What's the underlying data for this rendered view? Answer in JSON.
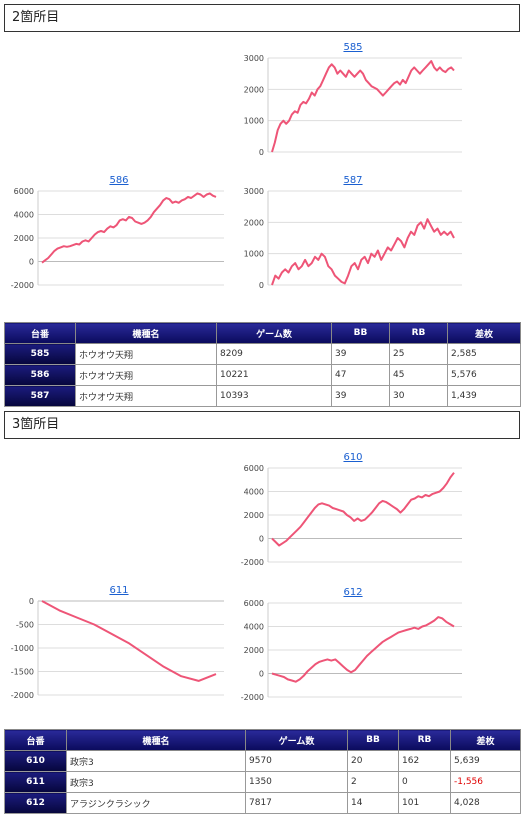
{
  "sections": [
    {
      "title": "2箇所目",
      "table": {
        "headers": [
          "台番",
          "機種名",
          "ゲーム数",
          "BB",
          "RB",
          "差枚"
        ],
        "rows": [
          {
            "id": "585",
            "machine": "ホウオウ天翔",
            "games": "8209",
            "bb": "39",
            "rb": "25",
            "diff": "2,585",
            "negative": false
          },
          {
            "id": "586",
            "machine": "ホウオウ天翔",
            "games": "10221",
            "bb": "47",
            "rb": "45",
            "diff": "5,576",
            "negative": false
          },
          {
            "id": "587",
            "machine": "ホウオウ天翔",
            "games": "10393",
            "bb": "39",
            "rb": "30",
            "diff": "1,439",
            "negative": false
          }
        ]
      }
    },
    {
      "title": "3箇所目",
      "table": {
        "headers": [
          "台番",
          "機種名",
          "ゲーム数",
          "BB",
          "RB",
          "差枚"
        ],
        "rows": [
          {
            "id": "610",
            "machine": "政宗3",
            "games": "9570",
            "bb": "20",
            "rb": "162",
            "diff": "5,639",
            "negative": false
          },
          {
            "id": "611",
            "machine": "政宗3",
            "games": "1350",
            "bb": "2",
            "rb": "0",
            "diff": "-1,556",
            "negative": true
          },
          {
            "id": "612",
            "machine": "アラジンクラシック",
            "games": "7817",
            "bb": "14",
            "rb": "101",
            "diff": "4,028",
            "negative": false
          }
        ]
      }
    }
  ],
  "chart_data": [
    {
      "type": "line",
      "title": "585",
      "ylim": [
        0,
        3000
      ],
      "yticks": [
        0,
        1000,
        2000,
        3000
      ],
      "ytick_labels": [
        "0",
        "1000",
        "2000",
        "3000"
      ],
      "color": "#ee5577",
      "grid": true,
      "values": [
        0,
        300,
        700,
        900,
        1000,
        900,
        1000,
        1200,
        1300,
        1250,
        1500,
        1600,
        1550,
        1700,
        1900,
        1800,
        2000,
        2100,
        2300,
        2500,
        2700,
        2800,
        2700,
        2500,
        2600,
        2500,
        2400,
        2600,
        2500,
        2400,
        2500,
        2600,
        2500,
        2300,
        2200,
        2100,
        2050,
        2000,
        1900,
        1800,
        1900,
        2000,
        2100,
        2200,
        2250,
        2150,
        2300,
        2200,
        2400,
        2600,
        2700,
        2600,
        2500,
        2600,
        2700,
        2800,
        2900,
        2700,
        2600,
        2700,
        2600,
        2550,
        2650,
        2700,
        2600
      ]
    },
    {
      "type": "line",
      "title": "586",
      "ylim": [
        -2000,
        6000
      ],
      "yticks": [
        -2000,
        0,
        2000,
        4000,
        6000
      ],
      "ytick_labels": [
        "-2000",
        "0",
        "2000",
        "4000",
        "6000"
      ],
      "color": "#ee5577",
      "grid": true,
      "values": [
        -100,
        100,
        300,
        600,
        900,
        1100,
        1200,
        1300,
        1250,
        1300,
        1400,
        1500,
        1450,
        1700,
        1800,
        1700,
        2000,
        2300,
        2500,
        2600,
        2500,
        2800,
        3000,
        2900,
        3100,
        3500,
        3600,
        3500,
        3800,
        3700,
        3400,
        3300,
        3200,
        3300,
        3500,
        3800,
        4200,
        4500,
        4800,
        5200,
        5400,
        5300,
        5000,
        5100,
        5000,
        5200,
        5300,
        5500,
        5400,
        5600,
        5800,
        5700,
        5500,
        5700,
        5800,
        5600,
        5500
      ]
    },
    {
      "type": "line",
      "title": "587",
      "ylim": [
        0,
        3000
      ],
      "yticks": [
        0,
        1000,
        2000,
        3000
      ],
      "ytick_labels": [
        "0",
        "1000",
        "2000",
        "3000"
      ],
      "color": "#ee5577",
      "grid": true,
      "values": [
        0,
        300,
        200,
        400,
        500,
        400,
        600,
        700,
        500,
        600,
        800,
        600,
        700,
        900,
        800,
        1000,
        900,
        600,
        500,
        300,
        200,
        100,
        50,
        300,
        600,
        700,
        500,
        800,
        900,
        700,
        1000,
        900,
        1100,
        800,
        1000,
        1200,
        1100,
        1300,
        1500,
        1400,
        1200,
        1500,
        1700,
        1600,
        1900,
        2000,
        1800,
        2100,
        1900,
        1700,
        1800,
        1600,
        1700,
        1600,
        1700,
        1500
      ]
    },
    {
      "type": "line",
      "title": "610",
      "ylim": [
        -2000,
        6000
      ],
      "yticks": [
        -2000,
        0,
        2000,
        4000,
        6000
      ],
      "ytick_labels": [
        "-2000",
        "0",
        "2000",
        "4000",
        "6000"
      ],
      "color": "#ee5577",
      "grid": true,
      "values": [
        0,
        -300,
        -600,
        -400,
        -200,
        100,
        400,
        700,
        1000,
        1400,
        1800,
        2200,
        2600,
        2900,
        3000,
        2900,
        2800,
        2600,
        2500,
        2400,
        2300,
        2000,
        1800,
        1500,
        1700,
        1500,
        1600,
        1900,
        2200,
        2600,
        3000,
        3200,
        3100,
        2900,
        2700,
        2500,
        2200,
        2500,
        2900,
        3300,
        3400,
        3600,
        3500,
        3700,
        3600,
        3800,
        3900,
        4000,
        4300,
        4700,
        5200,
        5600
      ]
    },
    {
      "type": "line",
      "title": "611",
      "ylim": [
        -2000,
        0
      ],
      "yticks": [
        -2000,
        -1500,
        -1000,
        -500,
        0
      ],
      "ytick_labels": [
        "-2000",
        "-1500",
        "-1000",
        "-500",
        "0"
      ],
      "color": "#ee5577",
      "grid": true,
      "values": [
        0,
        -200,
        -350,
        -500,
        -700,
        -900,
        -1150,
        -1400,
        -1600,
        -1700,
        -1556
      ]
    },
    {
      "type": "line",
      "title": "612",
      "ylim": [
        -2000,
        6000
      ],
      "yticks": [
        -2000,
        0,
        2000,
        4000,
        6000
      ],
      "ytick_labels": [
        "-2000",
        "0",
        "2000",
        "4000",
        "6000"
      ],
      "color": "#ee5577",
      "grid": true,
      "values": [
        0,
        -100,
        -200,
        -300,
        -500,
        -600,
        -700,
        -500,
        -200,
        200,
        500,
        800,
        1000,
        1100,
        1200,
        1100,
        1200,
        900,
        600,
        300,
        100,
        300,
        700,
        1100,
        1500,
        1800,
        2100,
        2400,
        2700,
        2900,
        3100,
        3300,
        3500,
        3600,
        3700,
        3800,
        3900,
        3800,
        4000,
        4100,
        4300,
        4500,
        4800,
        4700,
        4400,
        4200,
        4000
      ]
    }
  ]
}
